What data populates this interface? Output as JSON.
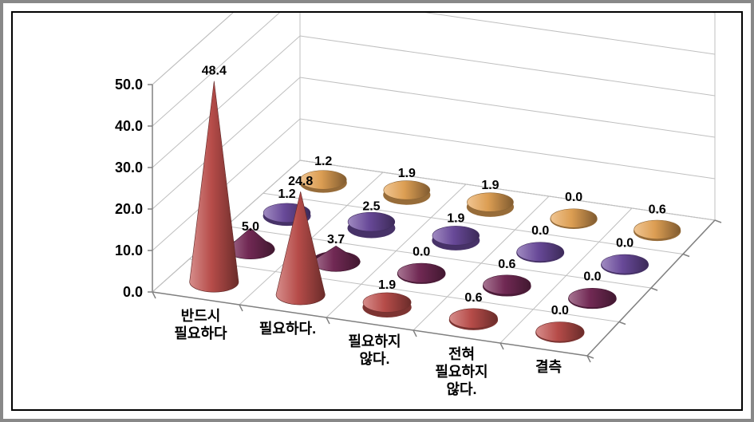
{
  "chart": {
    "type": "3d-cone",
    "outer_border_color": "#888888",
    "inner_border_color": "#000000",
    "background_color": "#ffffff",
    "plot_floor_color": "#ffffff",
    "plot_wall_color": "#ffffff",
    "grid_color": "#bfbfbf",
    "tick_color": "#808080",
    "axis_line_color": "#808080",
    "axis_fontsize": 18,
    "value_label_fontsize": 16,
    "y_axis": {
      "min": 0.0,
      "max": 50.0,
      "step": 10.0,
      "ticks": [
        "0.0",
        "10.0",
        "20.0",
        "30.0",
        "40.0",
        "50.0"
      ]
    },
    "x_categories": [
      "반드시\n필요하다",
      "필요하다.",
      "필요하지\n않다.",
      "전혀\n필요하지\n않다.",
      "결측"
    ],
    "z_series_count": 4,
    "series_colors": [
      "#c0504d",
      "#772b58",
      "#6d4da0",
      "#e8a657"
    ],
    "data": [
      [
        48.4,
        24.8,
        1.9,
        0.6,
        0.0
      ],
      [
        5.0,
        3.7,
        0.0,
        0.6,
        0.0
      ],
      [
        1.2,
        2.5,
        1.9,
        0.0,
        0.0
      ],
      [
        1.2,
        1.9,
        1.9,
        0.0,
        0.6
      ]
    ],
    "label_text_color": "#000000"
  }
}
